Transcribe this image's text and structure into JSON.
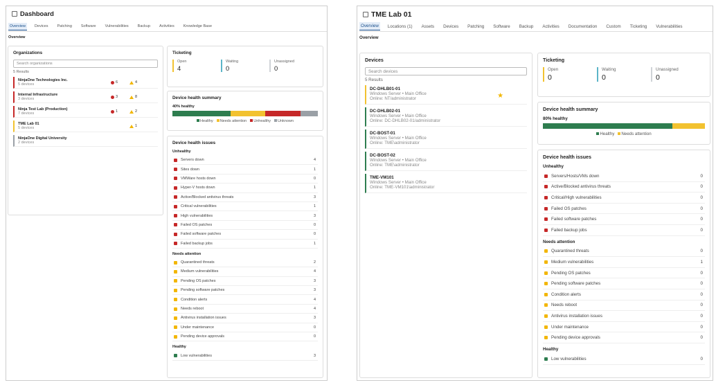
{
  "panels": [
    {
      "title": "Dashboard",
      "tabs": [
        "Overview",
        "Devices",
        "Patching",
        "Software",
        "Vulnerabilities",
        "Backup",
        "Activities",
        "Knowledge Base"
      ],
      "section": "Overview",
      "organizations": {
        "title": "Organizations",
        "search": "Search organizations",
        "results": "5 Results",
        "items": [
          {
            "name": "NinjaOne Technologies Inc.",
            "sub": "5 devices",
            "color": "#c62828",
            "red": 6,
            "yellow": 4
          },
          {
            "name": "Internal Infrastructure",
            "sub": "3 devices",
            "color": "#c62828",
            "red": 3,
            "yellow": 8
          },
          {
            "name": "Ninja Test Lab (Production)",
            "sub": "7 devices",
            "color": "#c62828",
            "red": 1,
            "yellow": 2
          },
          {
            "name": "TME Lab 01",
            "sub": "5 devices",
            "color": "#f2c230",
            "yellow": 1
          },
          {
            "name": "NinjaOne Digital University",
            "sub": "2 devices",
            "color": "#9aa0a6"
          }
        ]
      },
      "ticketing": {
        "title": "Ticketing",
        "stats": [
          {
            "label": "Open",
            "value": 4,
            "color": "#f2c230"
          },
          {
            "label": "Waiting",
            "value": 0,
            "color": "#5bb5c8"
          },
          {
            "label": "Unassigned",
            "value": 0,
            "color": "#cfd3d7"
          }
        ]
      },
      "health": {
        "title": "Device health summary",
        "label": "40% healthy",
        "segments": [
          {
            "name": "Healthy",
            "color": "#2e7d4f",
            "value": 40
          },
          {
            "name": "Needs attention",
            "color": "#f2c230",
            "value": 24
          },
          {
            "name": "Unhealthy",
            "color": "#c62828",
            "value": 24
          },
          {
            "name": "Unknown",
            "color": "#9aa0a6",
            "value": 12
          }
        ]
      },
      "issues": {
        "title": "Device health issues",
        "groups": [
          {
            "name": "Unhealthy",
            "color": "#c62828",
            "items": [
              {
                "label": "Servers down",
                "count": 4
              },
              {
                "label": "Sites down",
                "count": 1
              },
              {
                "label": "VMWare hosts down",
                "count": 0
              },
              {
                "label": "Hyper-V hosts down",
                "count": 1
              },
              {
                "label": "Active/Blocked antivirus threats",
                "count": 3
              },
              {
                "label": "Critical vulnerabilities",
                "count": 1
              },
              {
                "label": "High vulnerabilities",
                "count": 3
              },
              {
                "label": "Failed OS patches",
                "count": 0
              },
              {
                "label": "Failed software patches",
                "count": 0
              },
              {
                "label": "Failed backup jobs",
                "count": 1
              }
            ]
          },
          {
            "name": "Needs attention",
            "color": "#f2b600",
            "items": [
              {
                "label": "Quarantined threats",
                "count": 2
              },
              {
                "label": "Medium vulnerabilities",
                "count": 4
              },
              {
                "label": "Pending OS patches",
                "count": 3
              },
              {
                "label": "Pending software patches",
                "count": 3
              },
              {
                "label": "Condition alerts",
                "count": 4
              },
              {
                "label": "Needs reboot",
                "count": 4
              },
              {
                "label": "Antivirus installation issues",
                "count": 3
              },
              {
                "label": "Under maintenance",
                "count": 0
              },
              {
                "label": "Pending device approvals",
                "count": 0
              }
            ]
          },
          {
            "name": "Healthy",
            "color": "#2e7d4f",
            "items": [
              {
                "label": "Low vulnerabilities",
                "count": 3
              }
            ]
          }
        ]
      }
    },
    {
      "title": "TME Lab 01",
      "tabs": [
        "Overview",
        "Locations (1)",
        "Assets",
        "Devices",
        "Patching",
        "Software",
        "Backup",
        "Activities",
        "Documentation",
        "Custom",
        "Ticketing",
        "Vulnerabilities"
      ],
      "section": "Overview",
      "devices": {
        "title": "Devices",
        "search": "Search devices",
        "results": "5 Results",
        "items": [
          {
            "name": "DC-DHLB01-01",
            "sub": "Windows Server • Main Office",
            "status": "Online: NT/administrator",
            "color": "#f2c230",
            "star": true
          },
          {
            "name": "DC-DHLB02-01",
            "sub": "Windows Server • Main Office",
            "status": "Online: DC-DHLB02-01/administrator",
            "color": "#2e7d4f"
          },
          {
            "name": "DC-BOST-01",
            "sub": "Windows Server • Main Office",
            "status": "Online: TME\\administrator",
            "color": "#2e7d4f"
          },
          {
            "name": "DC-BOST-02",
            "sub": "Windows Server • Main Office",
            "status": "Online: TME\\administrator",
            "color": "#2e7d4f"
          },
          {
            "name": "TME-VM101",
            "sub": "Windows Server • Main Office",
            "status": "Online: TME-VM101\\administrator",
            "color": "#2e7d4f"
          }
        ]
      },
      "ticketing": {
        "title": "Ticketing",
        "stats": [
          {
            "label": "Open",
            "value": 0,
            "color": "#f2c230"
          },
          {
            "label": "Waiting",
            "value": 0,
            "color": "#5bb5c8"
          },
          {
            "label": "Unassigned",
            "value": 0,
            "color": "#cfd3d7"
          }
        ]
      },
      "health": {
        "title": "Device health summary",
        "label": "80% healthy",
        "segments": [
          {
            "name": "Healthy",
            "color": "#2e7d4f",
            "value": 80
          },
          {
            "name": "Needs attention",
            "color": "#f2c230",
            "value": 20
          }
        ]
      },
      "issues": {
        "title": "Device health issues",
        "groups": [
          {
            "name": "Unhealthy",
            "color": "#c62828",
            "items": [
              {
                "label": "Servers/Hosts/VMs down",
                "count": 0
              },
              {
                "label": "Active/Blocked antivirus threats",
                "count": 0
              },
              {
                "label": "Critical/High vulnerabilities",
                "count": 0
              },
              {
                "label": "Failed OS patches",
                "count": 0
              },
              {
                "label": "Failed software patches",
                "count": 0
              },
              {
                "label": "Failed backup jobs",
                "count": 0
              }
            ]
          },
          {
            "name": "Needs attention",
            "color": "#f2b600",
            "items": [
              {
                "label": "Quarantined threats",
                "count": 0
              },
              {
                "label": "Medium vulnerabilities",
                "count": 1
              },
              {
                "label": "Pending OS patches",
                "count": 0
              },
              {
                "label": "Pending software patches",
                "count": 0
              },
              {
                "label": "Condition alerts",
                "count": 0
              },
              {
                "label": "Needs reboot",
                "count": 0
              },
              {
                "label": "Antivirus installation issues",
                "count": 0
              },
              {
                "label": "Under maintenance",
                "count": 0
              },
              {
                "label": "Pending device approvals",
                "count": 0
              }
            ]
          },
          {
            "name": "Healthy",
            "color": "#2e7d4f",
            "items": [
              {
                "label": "Low vulnerabilities",
                "count": 0
              }
            ]
          }
        ]
      }
    }
  ]
}
